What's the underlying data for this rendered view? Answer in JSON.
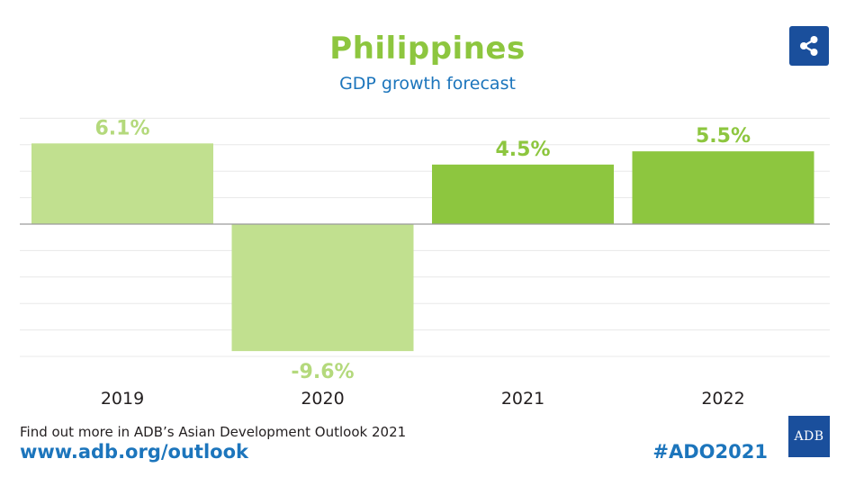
{
  "header": {
    "title": "Philippines",
    "subtitle": "GDP growth forecast"
  },
  "share": {
    "icon": "share-icon"
  },
  "chart_data": {
    "type": "bar",
    "title": "Philippines",
    "subtitle": "GDP growth forecast",
    "categories": [
      "2019",
      "2020",
      "2021",
      "2022"
    ],
    "values": [
      6.1,
      -9.6,
      4.5,
      5.5
    ],
    "data_labels": [
      "6.1%",
      "-9.6%",
      "4.5%",
      "5.5%"
    ],
    "colors": [
      "#c1e08f",
      "#c1e08f",
      "#8dc63f",
      "#8dc63f"
    ],
    "label_colors": [
      "#b4d97c",
      "#b4d97c",
      "#8dc63f",
      "#8dc63f"
    ],
    "ylim": [
      -10,
      8
    ],
    "grid": true,
    "xlabel": "",
    "ylabel": ""
  },
  "footer": {
    "text": "Find out more in ADB’s Asian Development Outlook 2021",
    "link": "www.adb.org/outlook",
    "hashtag": "#ADO2021",
    "logo_text": "ADB"
  }
}
